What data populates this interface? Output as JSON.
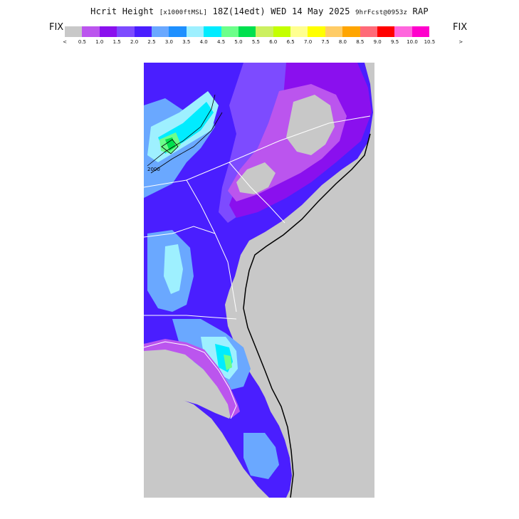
{
  "title": {
    "main": "Hcrit Height",
    "units": "[x1000ftMSL]",
    "valid": "18Z(14edt) WED 14 May 2025",
    "forecast": "9hrFcst@0953z",
    "model": "RAP"
  },
  "legend": {
    "left_label": "FIX",
    "right_label": "FIX",
    "less_than": "<",
    "greater_than": ">",
    "tick_labels": [
      "0.5",
      "1.0",
      "1.5",
      "2.0",
      "2.5",
      "3.0",
      "3.5",
      "4.0",
      "4.5",
      "5.0",
      "5.5",
      "6.0",
      "6.5",
      "7.0",
      "7.5",
      "8.0",
      "8.5",
      "9.0",
      "9.5",
      "10.0",
      "10.5"
    ],
    "colors": [
      "#c8c8c8",
      "#bb55ee",
      "#8a10ee",
      "#7d4bff",
      "#4a1eff",
      "#6aa8ff",
      "#1e90ff",
      "#9ef0ff",
      "#00ecff",
      "#6cff8a",
      "#00e04e",
      "#ccf060",
      "#c4ff00",
      "#ffff90",
      "#ffff00",
      "#ffcc66",
      "#ffa500",
      "#ff6a78",
      "#ff0000",
      "#ff66dd",
      "#ff00cc"
    ]
  },
  "map": {
    "contour_label": "2000",
    "land_color": "#c8c8c8",
    "boundary_color": "#ffffff",
    "coast_color": "#000000"
  }
}
